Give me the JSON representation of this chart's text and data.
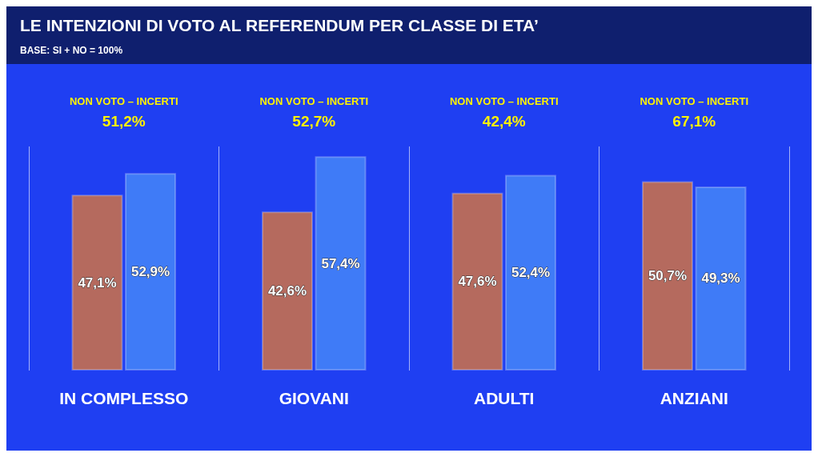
{
  "chart_data": {
    "type": "bar",
    "title": "LE INTENZIONI DI VOTO AL REFERENDUM PER CLASSE DI ETA’",
    "subtitle": "BASE: SI + NO = 100%",
    "categories": [
      "IN COMPLESSO",
      "GIOVANI",
      "ADULTI",
      "ANZIANI"
    ],
    "series": [
      {
        "color": "#b56a5e",
        "values": [
          47.1,
          42.6,
          47.6,
          50.7
        ],
        "value_labels": [
          "47,1%",
          "42,6%",
          "47,6%",
          "50,7%"
        ]
      },
      {
        "color": "#3f7bf7",
        "values": [
          52.9,
          57.4,
          52.4,
          49.3
        ],
        "value_labels": [
          "52,9%",
          "57,4%",
          "52,4%",
          "49,3%"
        ]
      }
    ],
    "annotations": [
      "NON VOTO – INCERTI\n51,2%",
      "NON VOTO – INCERTI\n52,7%",
      "NON VOTO – INCERTI\n42,4%",
      "NON VOTO – INCERTI\n67,1%"
    ],
    "grid": "x"
  }
}
